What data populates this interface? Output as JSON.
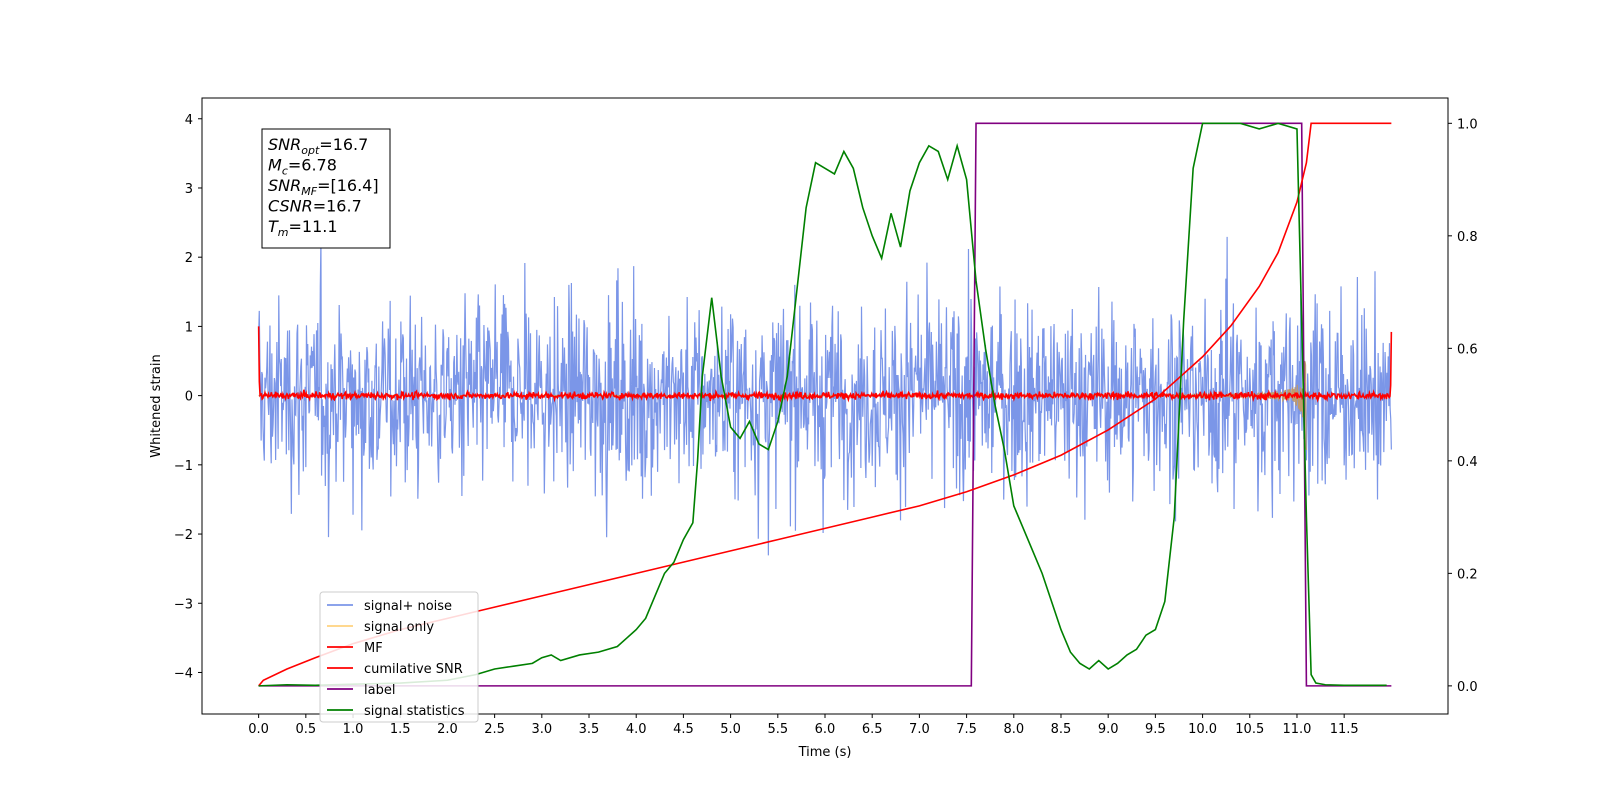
{
  "chart_data": {
    "type": "line",
    "title": "",
    "xlabel": "Time (s)",
    "ylabel": "Whitened strain",
    "xlim": [
      -0.6,
      12.6
    ],
    "ylim": [
      -4.6,
      4.3
    ],
    "y2lim": [
      -0.05,
      1.045
    ],
    "x_ticks": [
      0.0,
      0.5,
      1.0,
      1.5,
      2.0,
      2.5,
      3.0,
      3.5,
      4.0,
      4.5,
      5.0,
      5.5,
      6.0,
      6.5,
      7.0,
      7.5,
      8.0,
      8.5,
      9.0,
      9.5,
      10.0,
      10.5,
      11.0,
      11.5
    ],
    "x_tick_labels": [
      "0.0",
      "0.5",
      "1.0",
      "1.5",
      "2.0",
      "2.5",
      "3.0",
      "3.5",
      "4.0",
      "4.5",
      "5.0",
      "5.5",
      "6.0",
      "6.5",
      "7.0",
      "7.5",
      "8.0",
      "8.5",
      "9.0",
      "9.5",
      "10.0",
      "10.5",
      "11.0",
      "11.5"
    ],
    "y_ticks": [
      4,
      3,
      2,
      1,
      0,
      -1,
      -2,
      -3,
      -4
    ],
    "y_tick_labels": [
      "4",
      "3",
      "2",
      "1",
      "0",
      "−1",
      "−2",
      "−3",
      "−4"
    ],
    "y2_ticks": [
      1.0,
      0.8,
      0.6,
      0.4,
      0.2,
      0.0
    ],
    "y2_tick_labels": [
      "1.0",
      "0.8",
      "0.6",
      "0.4",
      "0.2",
      "0.0"
    ],
    "grid": false,
    "legend_position": "lower-left",
    "annotation_box": {
      "lines": [
        {
          "base": "SNR",
          "sub": "opt",
          "rest": "=16.7"
        },
        {
          "base": "M",
          "sub": "c",
          "rest": "=6.78"
        },
        {
          "base": "SNR",
          "sub": "MF",
          "rest": "=[16.4]"
        },
        {
          "base": "CSNR",
          "sub": "",
          "rest": "=16.7"
        },
        {
          "base": "T",
          "sub": "m",
          "rest": "=11.1"
        }
      ]
    },
    "series": [
      {
        "name": "signal+ noise",
        "color": "#7b96e8",
        "axis": "left",
        "style": "noise band, approx range -2.4 to 2.4 with spikes to ±3.9",
        "x_range": [
          0.0,
          12.0
        ]
      },
      {
        "name": "signal only",
        "color": "#ffd27f",
        "axis": "left",
        "style": "chirp envelope growing to ~0.9 at x=11.1",
        "x_range": [
          0.0,
          11.1
        ]
      },
      {
        "name": "MF",
        "color": "#ff0000",
        "axis": "left",
        "style": "noise around 0 (±0.1), spike to 1.0 at x=0 and 0.9 at x=12",
        "x_range": [
          0.0,
          12.0
        ]
      },
      {
        "name": "cumilative SNR",
        "color": "#ff0000",
        "axis": "right",
        "x": [
          0.0,
          0.05,
          0.3,
          0.6,
          1.0,
          1.5,
          2.0,
          2.5,
          3.0,
          3.5,
          4.0,
          4.5,
          5.0,
          5.5,
          6.0,
          6.5,
          7.0,
          7.5,
          8.0,
          8.5,
          9.0,
          9.5,
          10.0,
          10.3,
          10.6,
          10.8,
          11.0,
          11.1,
          11.15,
          12.0
        ],
        "y": [
          0.0,
          0.01,
          0.03,
          0.05,
          0.075,
          0.1,
          0.12,
          0.14,
          0.16,
          0.18,
          0.2,
          0.22,
          0.24,
          0.26,
          0.28,
          0.3,
          0.32,
          0.345,
          0.375,
          0.41,
          0.455,
          0.51,
          0.585,
          0.64,
          0.71,
          0.77,
          0.86,
          0.93,
          1.0,
          1.0
        ]
      },
      {
        "name": "label",
        "color": "#800080",
        "axis": "right",
        "x": [
          0.0,
          7.55,
          7.6,
          11.05,
          11.1,
          12.0
        ],
        "y": [
          0.0,
          0.0,
          1.0,
          1.0,
          0.0,
          0.0
        ]
      },
      {
        "name": "signal statistics",
        "color": "#008000",
        "axis": "right",
        "x": [
          0.0,
          0.3,
          0.6,
          1.0,
          1.5,
          2.0,
          2.3,
          2.5,
          2.7,
          2.9,
          3.0,
          3.1,
          3.2,
          3.4,
          3.6,
          3.8,
          3.9,
          4.0,
          4.1,
          4.2,
          4.3,
          4.4,
          4.5,
          4.6,
          4.65,
          4.7,
          4.75,
          4.8,
          4.9,
          5.0,
          5.1,
          5.2,
          5.3,
          5.4,
          5.5,
          5.6,
          5.7,
          5.8,
          5.9,
          6.0,
          6.1,
          6.2,
          6.3,
          6.4,
          6.5,
          6.6,
          6.7,
          6.8,
          6.9,
          7.0,
          7.1,
          7.2,
          7.3,
          7.4,
          7.5,
          7.6,
          7.7,
          7.8,
          7.9,
          8.0,
          8.1,
          8.2,
          8.3,
          8.4,
          8.5,
          8.6,
          8.7,
          8.8,
          8.9,
          9.0,
          9.1,
          9.2,
          9.3,
          9.4,
          9.5,
          9.6,
          9.7,
          9.8,
          9.9,
          10.0,
          10.2,
          10.4,
          10.6,
          10.8,
          11.0,
          11.1,
          11.15,
          11.2,
          11.3,
          11.5,
          11.7,
          11.95
        ],
        "y": [
          0.0,
          0.002,
          0.001,
          0.003,
          0.005,
          0.01,
          0.02,
          0.03,
          0.035,
          0.04,
          0.05,
          0.055,
          0.045,
          0.055,
          0.06,
          0.07,
          0.085,
          0.1,
          0.12,
          0.16,
          0.2,
          0.22,
          0.26,
          0.29,
          0.4,
          0.55,
          0.62,
          0.69,
          0.55,
          0.46,
          0.44,
          0.47,
          0.43,
          0.42,
          0.47,
          0.55,
          0.7,
          0.85,
          0.93,
          0.92,
          0.91,
          0.95,
          0.92,
          0.85,
          0.8,
          0.76,
          0.84,
          0.78,
          0.88,
          0.93,
          0.96,
          0.95,
          0.9,
          0.96,
          0.9,
          0.72,
          0.6,
          0.5,
          0.42,
          0.32,
          0.28,
          0.24,
          0.2,
          0.15,
          0.1,
          0.06,
          0.04,
          0.03,
          0.045,
          0.03,
          0.04,
          0.055,
          0.065,
          0.09,
          0.1,
          0.15,
          0.3,
          0.65,
          0.92,
          1.0,
          1.0,
          1.0,
          0.99,
          1.0,
          0.99,
          0.3,
          0.02,
          0.005,
          0.002,
          0.001,
          0.001,
          0.001
        ]
      }
    ]
  }
}
